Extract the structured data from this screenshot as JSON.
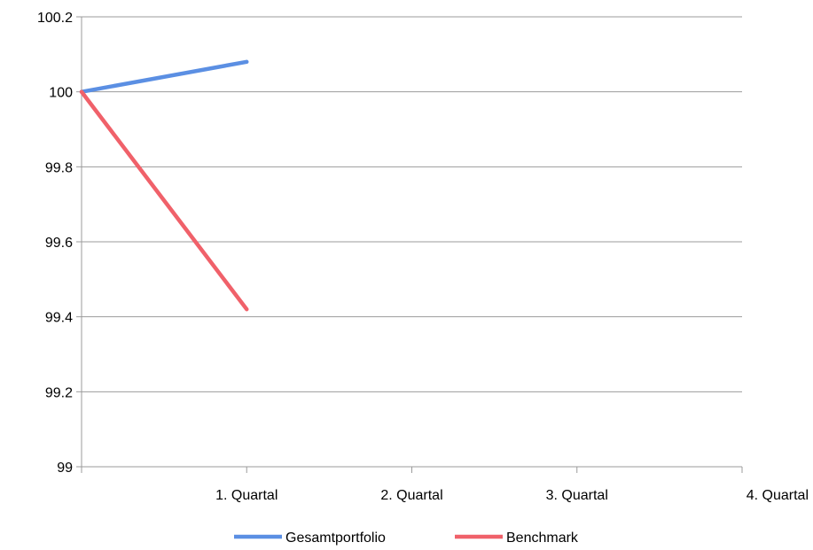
{
  "chart_data": {
    "type": "line",
    "title": "",
    "xlabel": "",
    "ylabel": "",
    "categories": [
      "",
      "1. Quartal",
      "2. Quartal",
      "3. Quartal",
      "4. Quartal"
    ],
    "ylim": [
      99,
      100.2
    ],
    "yticks": [
      "99",
      "99.2",
      "99.4",
      "99.6",
      "99.8",
      "100",
      "100.2"
    ],
    "ytick_values": [
      99,
      99.2,
      99.4,
      99.6,
      99.8,
      100,
      100.2
    ],
    "grid": "horizontal",
    "legend_position": "bottom",
    "series": [
      {
        "name": "Gesamtportfolio",
        "color": "#5B8FE3",
        "values": [
          100,
          100.08,
          null,
          null,
          null
        ]
      },
      {
        "name": "Benchmark",
        "color": "#F0616A",
        "values": [
          100,
          99.42,
          null,
          null,
          null
        ]
      }
    ]
  }
}
